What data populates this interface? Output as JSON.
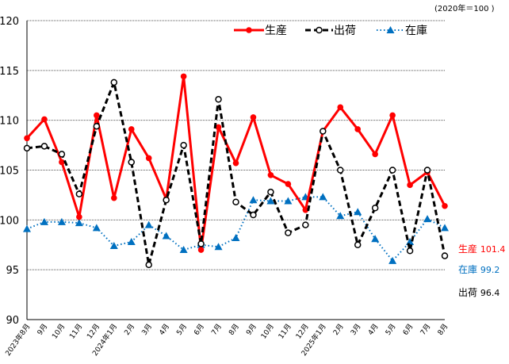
{
  "chart_data": {
    "type": "line",
    "title": "",
    "unit_note": "(2020年＝100 )",
    "xlabel": "",
    "ylabel": "",
    "ylim": [
      90,
      120
    ],
    "yticks": [
      90,
      95,
      100,
      105,
      110,
      115,
      120
    ],
    "grid": true,
    "legend_position": "top-right inside",
    "categories": [
      "2023年8月",
      "9月",
      "10月",
      "11月",
      "12月",
      "2024年1月",
      "2月",
      "3月",
      "4月",
      "5月",
      "6月",
      "7月",
      "8月",
      "9月",
      "10月",
      "11月",
      "12月",
      "2025年1月",
      "2月",
      "3月",
      "4月",
      "5月",
      "6月",
      "7月",
      "8月"
    ],
    "series": [
      {
        "name": "生産",
        "color": "#ff0000",
        "style": "solid",
        "marker": "filled-circle",
        "values": [
          108.2,
          110.1,
          105.8,
          100.3,
          110.5,
          102.2,
          109.1,
          106.2,
          102.1,
          114.4,
          97.0,
          109.3,
          105.7,
          110.3,
          104.5,
          103.6,
          101.0,
          108.9,
          111.3,
          109.1,
          106.6,
          110.5,
          103.5,
          104.8,
          101.4
        ],
        "end_label": "生産",
        "end_value": "101.4"
      },
      {
        "name": "出荷",
        "color": "#000000",
        "style": "dashed",
        "marker": "open-circle",
        "values": [
          107.2,
          107.4,
          106.6,
          102.6,
          109.4,
          113.8,
          105.8,
          95.5,
          102.0,
          107.5,
          97.6,
          112.1,
          101.8,
          100.5,
          102.8,
          98.7,
          99.5,
          108.9,
          105.0,
          97.5,
          101.2,
          105.0,
          96.9,
          105.0,
          96.4
        ],
        "end_label": "出荷",
        "end_value": "96.4"
      },
      {
        "name": "在庫",
        "color": "#0070c0",
        "style": "dotted",
        "marker": "triangle",
        "values": [
          99.1,
          99.8,
          99.8,
          99.7,
          99.2,
          97.4,
          97.8,
          99.5,
          98.4,
          97.0,
          97.5,
          97.3,
          98.2,
          102.0,
          101.9,
          101.9,
          102.3,
          102.3,
          100.4,
          100.8,
          98.1,
          95.9,
          97.8,
          100.1,
          99.2
        ],
        "end_label": "在庫",
        "end_value": "99.2"
      }
    ]
  }
}
